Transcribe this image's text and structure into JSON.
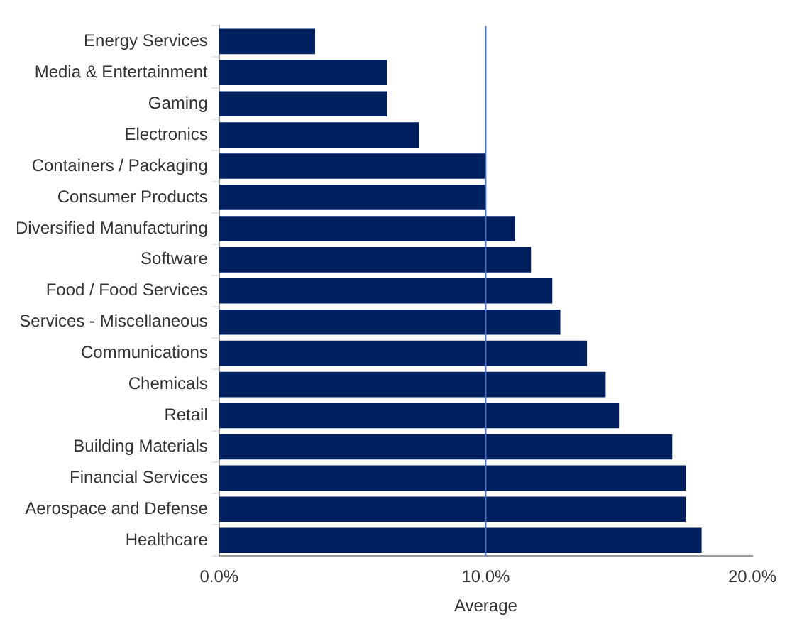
{
  "chart_data": {
    "type": "bar",
    "orientation": "horizontal",
    "categories": [
      "Energy Services",
      "Media & Entertainment",
      "Gaming",
      "Electronics",
      "Containers / Packaging",
      "Consumer Products",
      "Diversified Manufacturing",
      "Software",
      "Food / Food Services",
      "Services - Miscellaneous",
      "Communications",
      "Chemicals",
      "Retail",
      "Building Materials",
      "Financial Services",
      "Aerospace and Defense",
      "Healthcare"
    ],
    "values": [
      3.6,
      6.3,
      6.3,
      7.5,
      10.0,
      10.0,
      11.1,
      11.7,
      12.5,
      12.8,
      13.8,
      14.5,
      15.0,
      17.0,
      17.5,
      17.5,
      18.1
    ],
    "color": "#002060",
    "xlim": [
      0,
      20
    ],
    "xticks": [
      {
        "value": 0,
        "label": "0.0%"
      },
      {
        "value": 10,
        "label": "10.0%"
      },
      {
        "value": 20,
        "label": "20.0%"
      }
    ],
    "ref_lines": [
      {
        "axis": "x",
        "value": 10,
        "label": "Average",
        "color": "#4472c4"
      }
    ],
    "grid": false,
    "legend": false
  }
}
